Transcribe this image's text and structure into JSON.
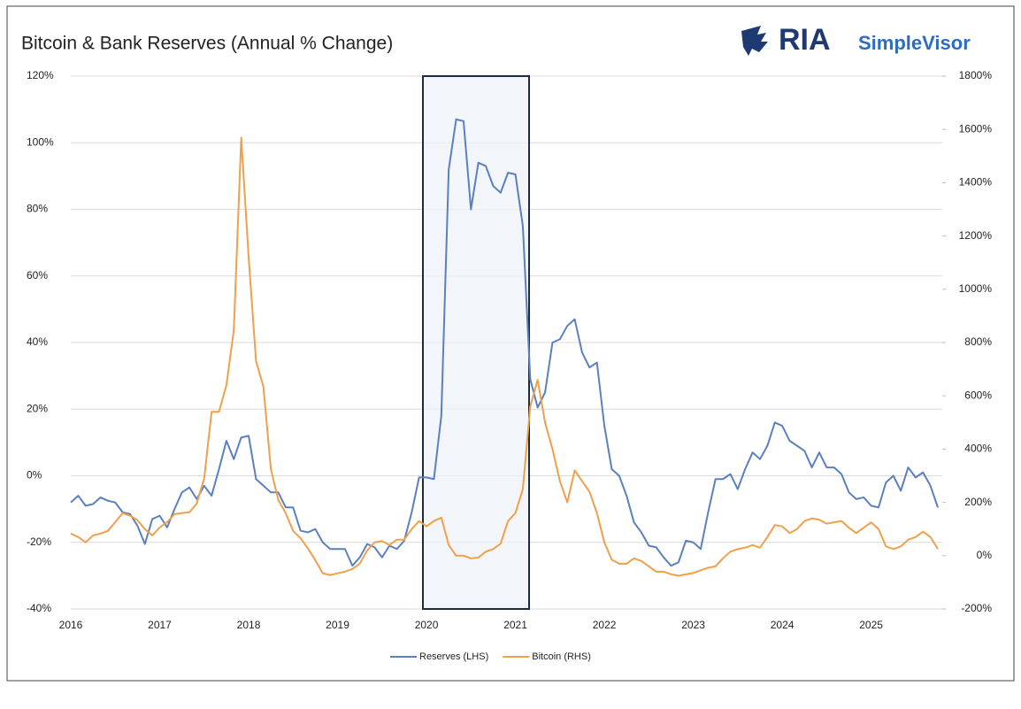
{
  "chart_data": {
    "type": "line",
    "title": "Bitcoin & Bank Reserves (Annual % Change)",
    "logo": {
      "brand": "RIA",
      "product": "SimpleVisor"
    },
    "categories": [
      "2016",
      null,
      null,
      null,
      null,
      null,
      null,
      null,
      null,
      null,
      null,
      null,
      "2017",
      null,
      null,
      null,
      null,
      null,
      null,
      null,
      null,
      null,
      null,
      null,
      "2018",
      null,
      null,
      null,
      null,
      null,
      null,
      null,
      null,
      null,
      null,
      null,
      "2019",
      null,
      null,
      null,
      null,
      null,
      null,
      null,
      null,
      null,
      null,
      null,
      "2020",
      null,
      null,
      null,
      null,
      null,
      null,
      null,
      null,
      null,
      null,
      null,
      "2021",
      null,
      null,
      null,
      null,
      null,
      null,
      null,
      null,
      null,
      null,
      null,
      "2022",
      null,
      null,
      null,
      null,
      null,
      null,
      null,
      null,
      null,
      null,
      null,
      "2023",
      null,
      null,
      null,
      null,
      null,
      null,
      null,
      null,
      null,
      null,
      null,
      "2024",
      null,
      null,
      null,
      null,
      null,
      null,
      null,
      null,
      null,
      null,
      null,
      "2025",
      null,
      null,
      null,
      null,
      null,
      null,
      null,
      null,
      null
    ],
    "series": [
      {
        "name": "Reserves (LHS)",
        "color": "#5b80c0",
        "axis": "y",
        "values": [
          -8,
          -6,
          -9,
          -8.5,
          -6.5,
          -7.5,
          -8,
          -11,
          -11.5,
          -15,
          -20.5,
          -13,
          -12,
          -15.5,
          -10,
          -5,
          -3.5,
          -7,
          -3,
          -6,
          2,
          10.5,
          5,
          11.5,
          12,
          -1,
          -3,
          -5,
          -5,
          -9.5,
          -9.5,
          -16.5,
          -17,
          -16,
          -20,
          -22,
          -22,
          -22,
          -27,
          -24.5,
          -20.5,
          -21.5,
          -24.5,
          -21,
          -22,
          -19.5,
          -11,
          -0.5,
          -0.5,
          -1,
          18,
          92,
          107,
          106.5,
          80,
          94,
          93,
          87,
          85,
          91,
          90.5,
          75,
          29,
          20.5,
          25,
          40,
          41,
          45,
          47,
          37,
          32.5,
          34,
          15,
          2,
          0,
          -6,
          -14,
          -17,
          -21,
          -21.5,
          -24.5,
          -27,
          -26,
          -19.5,
          -20,
          -22,
          -11,
          -1,
          -1,
          0.5,
          -4,
          2,
          7,
          5,
          9,
          16,
          15,
          10.5,
          9,
          7.5,
          2.5,
          7,
          2.5,
          2.5,
          0.5,
          -5,
          -7,
          -6.5,
          -9,
          -9.5,
          -2,
          0,
          -4.5,
          2.5,
          -0.5,
          1,
          -3,
          -9.5
        ]
      },
      {
        "name": "Bitcoin (RHS)",
        "color": "#f0a04b",
        "axis": "y2",
        "values": [
          83,
          70,
          50,
          76,
          83,
          93,
          126,
          160,
          150,
          133,
          100,
          76,
          106,
          126,
          156,
          160,
          163,
          196,
          290,
          540,
          540,
          640,
          846,
          1569,
          1120,
          730,
          633,
          325,
          209,
          160,
          93,
          66,
          27,
          -17,
          -66,
          -73,
          -66,
          -60,
          -50,
          -30,
          20,
          50,
          55,
          40,
          60,
          60,
          100,
          130,
          110,
          130,
          143,
          40,
          0,
          0,
          -10,
          -7,
          15,
          25,
          45,
          130,
          160,
          250,
          560,
          660,
          500,
          400,
          280,
          200,
          320,
          280,
          240,
          160,
          50,
          -15,
          -30,
          -30,
          -10,
          -20,
          -40,
          -60,
          -60,
          -70,
          -75,
          -70,
          -65,
          -55,
          -45,
          -40,
          -10,
          15,
          25,
          30,
          40,
          30,
          70,
          115,
          110,
          85,
          100,
          130,
          140,
          135,
          120,
          125,
          130,
          105,
          85,
          105,
          125,
          100,
          35,
          25,
          35,
          60,
          70,
          90,
          70,
          25
        ]
      }
    ],
    "ylim": [
      -40,
      120
    ],
    "yticks": [
      {
        "value": -40,
        "label": "-40%"
      },
      {
        "value": -20,
        "label": "-20%"
      },
      {
        "value": 0,
        "label": "0%"
      },
      {
        "value": 20,
        "label": "20%"
      },
      {
        "value": 40,
        "label": "40%"
      },
      {
        "value": 60,
        "label": "60%"
      },
      {
        "value": 80,
        "label": "80%"
      },
      {
        "value": 100,
        "label": "100%"
      },
      {
        "value": 120,
        "label": "120%"
      }
    ],
    "y2lim": [
      -200,
      1800
    ],
    "y2ticks": [
      {
        "value": -200,
        "label": "-200%"
      },
      {
        "value": 0,
        "label": "0%"
      },
      {
        "value": 200,
        "label": "200%"
      },
      {
        "value": 400,
        "label": "400%"
      },
      {
        "value": 600,
        "label": "600%"
      },
      {
        "value": 800,
        "label": "800%"
      },
      {
        "value": 1000,
        "label": "1000%"
      },
      {
        "value": 1200,
        "label": "1200%"
      },
      {
        "value": 1400,
        "label": "1400%"
      },
      {
        "value": 1600,
        "label": "1600%"
      },
      {
        "value": 1800,
        "label": "1800%"
      }
    ],
    "grid": true,
    "legend": "bottom"
  }
}
